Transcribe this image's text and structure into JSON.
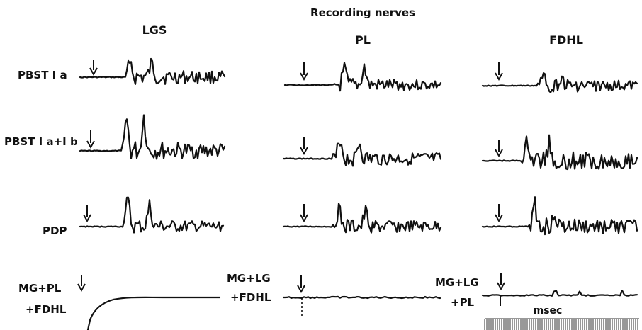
{
  "header": {
    "title": "Recording nerves"
  },
  "columns": [
    {
      "key": "lgs",
      "label": "LGS"
    },
    {
      "key": "pl",
      "label": "PL"
    },
    {
      "key": "fdhl",
      "label": "FDHL"
    }
  ],
  "rows": [
    {
      "key": "pbst1a",
      "lines": [
        "PBST I a"
      ]
    },
    {
      "key": "pbst1a1b",
      "lines": [
        "PBST I a+I b"
      ]
    },
    {
      "key": "pdp",
      "lines": [
        "PDP"
      ]
    }
  ],
  "bottom_labels": [
    {
      "key": "lgs",
      "lines": [
        "MG+PL",
        "+FDHL"
      ]
    },
    {
      "key": "pl",
      "lines": [
        "MG+LG",
        "+FDHL"
      ]
    },
    {
      "key": "fdhl",
      "lines": [
        "MG+LG",
        "+PL"
      ]
    }
  ],
  "time_scale": {
    "label": "msec"
  },
  "colors": {
    "ink": "#111111",
    "background": "#ffffff"
  }
}
